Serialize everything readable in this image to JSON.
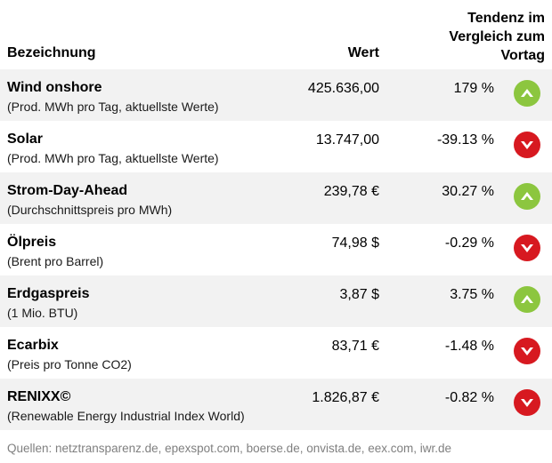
{
  "header": {
    "name": "Bezeichnung",
    "value": "Wert",
    "trend_line1": "Tendenz im",
    "trend_line2": "Vergleich zum",
    "trend_line3": "Vortag"
  },
  "rows": [
    {
      "name": "Wind onshore",
      "sub": "(Prod. MWh pro Tag, aktuellste Werte)",
      "value": "425.636,00",
      "change": "179 %",
      "trend": "up"
    },
    {
      "name": "Solar",
      "sub": "(Prod. MWh pro Tag, aktuellste Werte)",
      "value": "13.747,00",
      "change": "-39.13 %",
      "trend": "down"
    },
    {
      "name": "Strom-Day-Ahead",
      "sub": "(Durchschnittspreis pro MWh)",
      "value": "239,78 €",
      "change": "30.27 %",
      "trend": "up"
    },
    {
      "name": "Ölpreis",
      "sub": "(Brent pro Barrel)",
      "value": "74,98 $",
      "change": "-0.29 %",
      "trend": "down"
    },
    {
      "name": "Erdgaspreis",
      "sub": "(1 Mio. BTU)",
      "value": "3,87 $",
      "change": "3.75 %",
      "trend": "up"
    },
    {
      "name": "Ecarbix",
      "sub": "(Preis pro Tonne CO2)",
      "value": "83,71 €",
      "change": "-1.48 %",
      "trend": "down"
    },
    {
      "name": "RENIXX©",
      "sub": "(Renewable Energy Industrial Index World)",
      "value": "1.826,87 €",
      "change": "-0.82 %",
      "trend": "down"
    }
  ],
  "colors": {
    "up": "#8cc63f",
    "down": "#d71920"
  },
  "icons": {
    "up": "arrow-up-icon",
    "down": "arrow-down-icon"
  },
  "source": "Quellen: netztransparenz.de, epexspot.com, boerse.de, onvista.de, eex.com, iwr.de"
}
